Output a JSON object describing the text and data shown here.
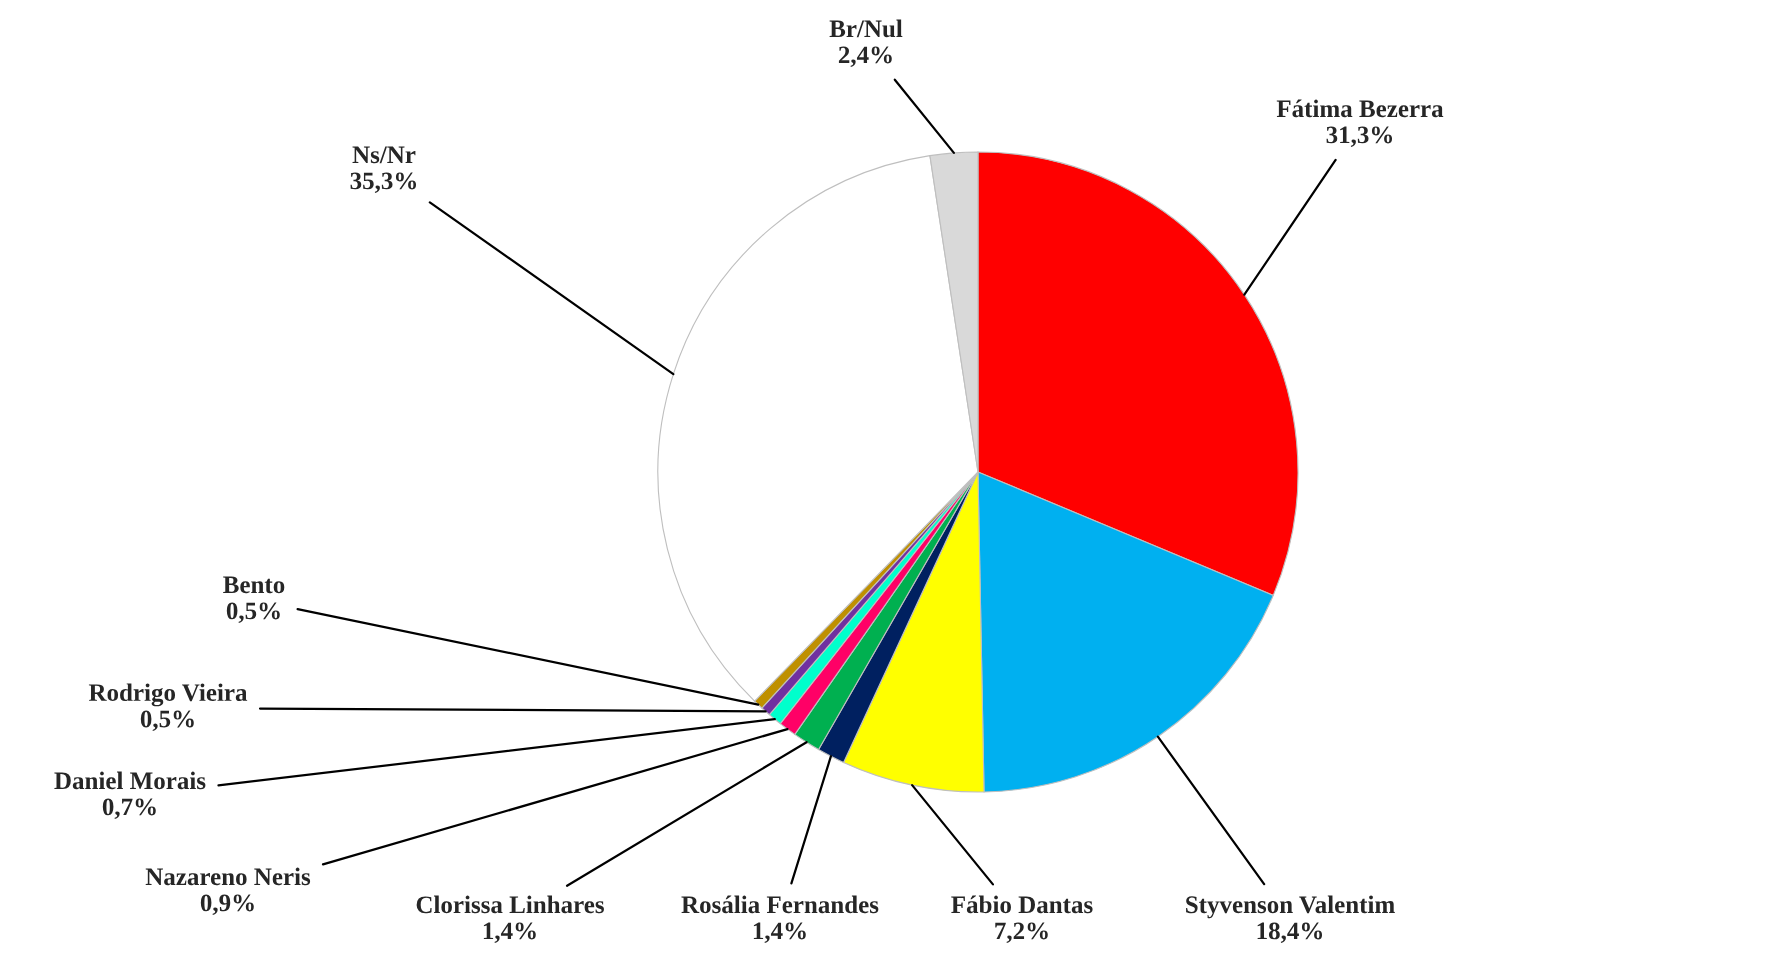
{
  "chart_data": {
    "type": "pie",
    "categories": [
      "Fátima Bezerra",
      "Styvenson Valentim",
      "Fábio Dantas",
      "Rosália Fernandes",
      "Clorissa Linhares",
      "Nazareno Neris",
      "Daniel Morais",
      "Rodrigo Vieira",
      "Bento",
      "Ns/Nr",
      "Br/Nul"
    ],
    "values": [
      31.3,
      18.4,
      7.2,
      1.4,
      1.4,
      0.9,
      0.7,
      0.5,
      0.5,
      35.3,
      2.4
    ],
    "value_labels": [
      "31,3%",
      "18,4%",
      "7,2%",
      "1,4%",
      "1,4%",
      "0,9%",
      "0,7%",
      "0,5%",
      "0,5%",
      "35,3%",
      "2,4%"
    ],
    "colors": [
      "#ff0000",
      "#00b0f0",
      "#ffff00",
      "#002060",
      "#00b050",
      "#ff0066",
      "#00ffcc",
      "#7030a0",
      "#bf9000",
      "#ffffff",
      "#d9d9d9"
    ]
  }
}
